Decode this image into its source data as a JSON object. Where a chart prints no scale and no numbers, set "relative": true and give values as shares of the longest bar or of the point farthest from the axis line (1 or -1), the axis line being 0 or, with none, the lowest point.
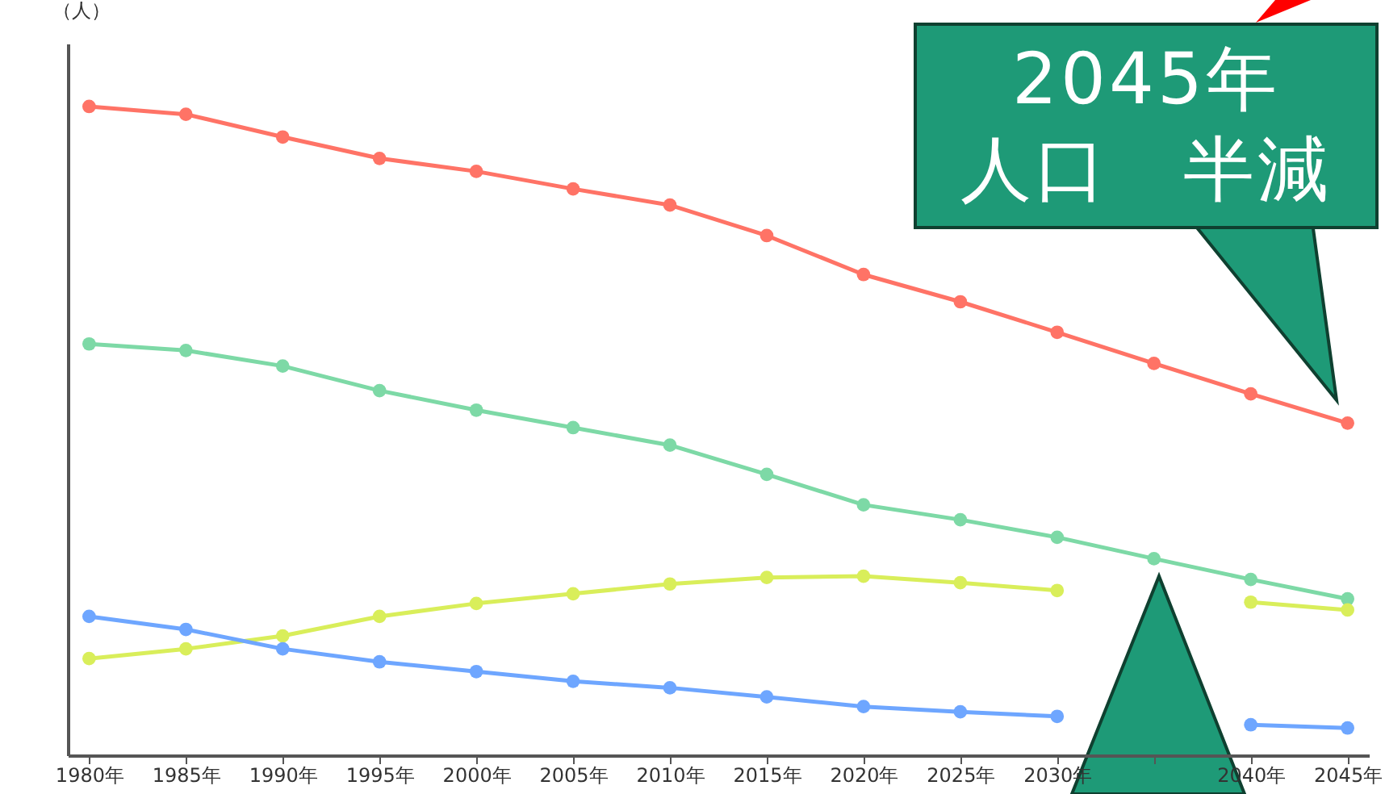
{
  "chart_data": {
    "type": "line",
    "ylabel": "（人）",
    "relative": true,
    "grid": false,
    "legend": false,
    "marker": "circle",
    "line_style": "solid",
    "categories": [
      "1980年",
      "1985年",
      "1990年",
      "1995年",
      "2000年",
      "2005年",
      "2010年",
      "2015年",
      "2020年",
      "2025年",
      "2030年",
      null,
      "2040年",
      "2045年"
    ],
    "series": [
      {
        "color": "#ff7366",
        "values": [
          1,
          0.988,
          0.953,
          0.92,
          0.9,
          0.873,
          0.848,
          0.801,
          0.741,
          0.699,
          0.652,
          0.604,
          0.557,
          0.512
        ]
      },
      {
        "color": "#7dd9a6",
        "values": [
          0.634,
          0.624,
          0.6,
          0.562,
          0.532,
          0.505,
          0.478,
          0.433,
          0.386,
          0.363,
          0.336,
          0.303,
          0.271,
          0.241
        ]
      },
      {
        "color": "#d9ee5a",
        "values": [
          0.149,
          0.164,
          0.184,
          0.214,
          0.234,
          0.249,
          0.264,
          0.274,
          0.276,
          0.266,
          0.254,
          null,
          0.236,
          0.224
        ]
      },
      {
        "color": "#6ea6ff",
        "values": [
          0.214,
          0.194,
          0.164,
          0.144,
          0.129,
          0.114,
          0.104,
          0.09,
          0.075,
          0.067,
          0.06,
          null,
          0.047,
          0.042
        ]
      }
    ],
    "annotations": [
      "2045年",
      "人口　半減"
    ]
  }
}
